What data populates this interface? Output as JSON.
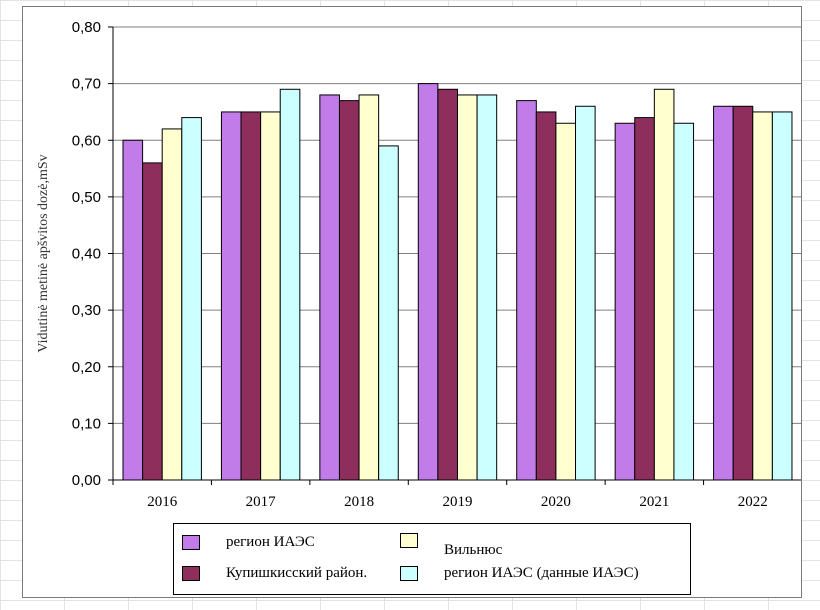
{
  "chart_data": {
    "type": "bar",
    "title": "",
    "xlabel": "",
    "ylabel": "Vidutinė metinė apšvitos dozė,mSv",
    "ylim": [
      0,
      0.8
    ],
    "yticks": [
      "0,00",
      "0,10",
      "0,20",
      "0,30",
      "0,40",
      "0,50",
      "0,60",
      "0,70",
      "0,80"
    ],
    "grid": "horizontal",
    "legend_position": "bottom",
    "categories": [
      "2016",
      "2017",
      "2018",
      "2019",
      "2020",
      "2021",
      "2022"
    ],
    "series": [
      {
        "name": "регион ИАЭС",
        "color": "#c27ce9",
        "values": [
          0.6,
          0.65,
          0.68,
          0.7,
          0.67,
          0.63,
          0.66
        ]
      },
      {
        "name": "Купишкисский район.",
        "color": "#8e2e5c",
        "values": [
          0.56,
          0.65,
          0.67,
          0.69,
          0.65,
          0.64,
          0.66
        ]
      },
      {
        "name": "Вильнюс",
        "color": "#ffffd0",
        "values": [
          0.62,
          0.65,
          0.68,
          0.68,
          0.63,
          0.69,
          0.65
        ]
      },
      {
        "name": "регион ИАЭС (данные ИАЭС)",
        "color": "#ccffff",
        "values": [
          0.64,
          0.69,
          0.59,
          0.68,
          0.66,
          0.63,
          0.65
        ]
      }
    ]
  }
}
